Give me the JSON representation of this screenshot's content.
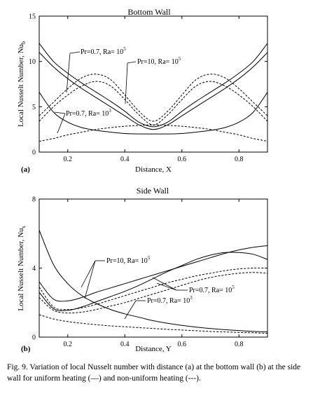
{
  "chart_data": [
    {
      "type": "line",
      "panel_label": "(a)",
      "title": "Bottom Wall",
      "xlabel": "Distance, X",
      "ylabel": "Local Nusselt Number, Nu",
      "ylabel_sub": "b",
      "xlim": [
        0.1,
        0.9
      ],
      "ylim": [
        0,
        15
      ],
      "xticks": [
        0.2,
        0.4,
        0.6,
        0.8
      ],
      "xtick_labels": [
        "0.2",
        "0.4",
        "0.6",
        "0.8"
      ],
      "yticks": [
        0,
        5,
        10,
        15
      ],
      "ytick_labels": [
        "0",
        "5",
        "10",
        "15"
      ],
      "grid": false,
      "annotations": [
        {
          "text": "Pr=0.7, Ra= 10",
          "sup": "5"
        },
        {
          "text": "Pr=10, Ra= 10",
          "sup": "5"
        },
        {
          "text": "Pr=0.7, Ra= 10",
          "sup": "3"
        }
      ],
      "series": [
        {
          "style": "solid",
          "x": [
            0.1,
            0.15,
            0.2,
            0.25,
            0.3,
            0.35,
            0.4,
            0.45,
            0.5,
            0.55,
            0.6,
            0.65,
            0.7,
            0.75,
            0.8,
            0.85,
            0.9
          ],
          "values": [
            12.0,
            10.0,
            8.7,
            7.6,
            6.6,
            5.6,
            4.5,
            3.3,
            2.8,
            3.3,
            4.5,
            5.6,
            6.6,
            7.6,
            8.7,
            10.0,
            12.0
          ]
        },
        {
          "style": "solid",
          "x": [
            0.1,
            0.15,
            0.2,
            0.25,
            0.3,
            0.35,
            0.4,
            0.45,
            0.5,
            0.55,
            0.6,
            0.65,
            0.7,
            0.75,
            0.8,
            0.85,
            0.9
          ],
          "values": [
            11.0,
            9.4,
            8.1,
            7.0,
            6.0,
            5.0,
            4.0,
            3.0,
            2.5,
            3.0,
            4.0,
            5.0,
            6.0,
            7.0,
            8.1,
            9.4,
            11.0
          ]
        },
        {
          "style": "solid",
          "x": [
            0.1,
            0.15,
            0.2,
            0.25,
            0.3,
            0.35,
            0.4,
            0.45,
            0.5,
            0.55,
            0.6,
            0.65,
            0.7,
            0.75,
            0.8,
            0.85,
            0.9
          ],
          "values": [
            6.6,
            4.4,
            3.3,
            2.7,
            2.4,
            2.2,
            2.05,
            2.0,
            2.0,
            2.0,
            2.05,
            2.2,
            2.4,
            2.7,
            3.3,
            4.4,
            6.6
          ]
        },
        {
          "style": "dashed",
          "x": [
            0.1,
            0.15,
            0.2,
            0.25,
            0.3,
            0.35,
            0.4,
            0.45,
            0.5,
            0.55,
            0.6,
            0.65,
            0.7,
            0.75,
            0.8,
            0.85,
            0.9
          ],
          "values": [
            4.0,
            5.5,
            7.0,
            8.2,
            8.6,
            8.0,
            6.3,
            4.5,
            3.4,
            4.5,
            6.3,
            8.0,
            8.6,
            8.2,
            7.0,
            5.5,
            4.0
          ]
        },
        {
          "style": "dashed",
          "x": [
            0.1,
            0.15,
            0.2,
            0.25,
            0.3,
            0.35,
            0.4,
            0.45,
            0.5,
            0.55,
            0.6,
            0.65,
            0.7,
            0.75,
            0.8,
            0.85,
            0.9
          ],
          "values": [
            3.4,
            5.0,
            6.3,
            7.3,
            7.8,
            7.3,
            5.8,
            4.1,
            3.0,
            4.1,
            5.8,
            7.3,
            7.8,
            7.3,
            6.3,
            5.0,
            3.4
          ]
        },
        {
          "style": "dashed",
          "x": [
            0.1,
            0.15,
            0.2,
            0.25,
            0.3,
            0.35,
            0.4,
            0.45,
            0.5,
            0.55,
            0.6,
            0.65,
            0.7,
            0.75,
            0.8,
            0.85,
            0.9
          ],
          "values": [
            1.2,
            1.5,
            1.9,
            2.2,
            2.5,
            2.7,
            2.85,
            2.95,
            3.0,
            2.95,
            2.85,
            2.7,
            2.5,
            2.2,
            1.9,
            1.5,
            1.2
          ]
        }
      ]
    },
    {
      "type": "line",
      "panel_label": "(b)",
      "title": "Side Wall",
      "xlabel": "Distance, Y",
      "ylabel": "Local Nusselt Number, Nu",
      "ylabel_sub": "s",
      "xlim": [
        0.1,
        0.9
      ],
      "ylim": [
        0,
        8
      ],
      "xticks": [
        0.2,
        0.4,
        0.6,
        0.8
      ],
      "xtick_labels": [
        "0.2",
        "0.4",
        "0.6",
        "0.8"
      ],
      "yticks": [
        0,
        4,
        8
      ],
      "ytick_labels": [
        "0",
        "4",
        "8"
      ],
      "grid": false,
      "annotations": [
        {
          "text": "Pr=10, Ra= 10",
          "sup": "5"
        },
        {
          "text": "Pr=0.7, Ra= 10",
          "sup": "5"
        },
        {
          "text": "Pr=0.7, Ra= 10",
          "sup": "3"
        }
      ],
      "series": [
        {
          "style": "solid",
          "x": [
            0.1,
            0.15,
            0.2,
            0.25,
            0.3,
            0.35,
            0.4,
            0.45,
            0.5,
            0.55,
            0.6,
            0.65,
            0.7,
            0.75,
            0.8,
            0.85,
            0.9
          ],
          "values": [
            3.2,
            2.2,
            2.1,
            2.3,
            2.6,
            2.85,
            3.1,
            3.35,
            3.6,
            3.85,
            4.1,
            4.35,
            4.6,
            4.85,
            5.05,
            5.2,
            5.3
          ]
        },
        {
          "style": "solid",
          "x": [
            0.1,
            0.15,
            0.2,
            0.25,
            0.3,
            0.35,
            0.4,
            0.45,
            0.5,
            0.55,
            0.6,
            0.65,
            0.7,
            0.75,
            0.8,
            0.85,
            0.9
          ],
          "values": [
            2.6,
            1.65,
            1.55,
            1.75,
            2.05,
            2.35,
            2.65,
            3.0,
            3.4,
            3.8,
            4.15,
            4.5,
            4.75,
            4.9,
            4.9,
            4.8,
            4.5
          ]
        },
        {
          "style": "solid",
          "x": [
            0.1,
            0.15,
            0.2,
            0.25,
            0.3,
            0.35,
            0.4,
            0.45,
            0.5,
            0.55,
            0.6,
            0.65,
            0.7,
            0.75,
            0.8,
            0.85,
            0.9
          ],
          "values": [
            6.2,
            4.2,
            3.1,
            2.4,
            1.95,
            1.6,
            1.35,
            1.15,
            0.95,
            0.8,
            0.68,
            0.58,
            0.5,
            0.43,
            0.38,
            0.33,
            0.3
          ]
        },
        {
          "style": "dashed",
          "x": [
            0.1,
            0.15,
            0.2,
            0.25,
            0.3,
            0.35,
            0.4,
            0.45,
            0.5,
            0.55,
            0.6,
            0.65,
            0.7,
            0.75,
            0.8,
            0.85,
            0.9
          ],
          "values": [
            2.9,
            1.75,
            1.6,
            1.7,
            1.9,
            2.15,
            2.4,
            2.65,
            2.9,
            3.15,
            3.35,
            3.55,
            3.7,
            3.85,
            3.95,
            4.0,
            4.0
          ]
        },
        {
          "style": "dashed",
          "x": [
            0.1,
            0.15,
            0.2,
            0.25,
            0.3,
            0.35,
            0.4,
            0.45,
            0.5,
            0.55,
            0.6,
            0.65,
            0.7,
            0.75,
            0.8,
            0.85,
            0.9
          ],
          "values": [
            2.3,
            1.55,
            1.4,
            1.45,
            1.6,
            1.8,
            2.0,
            2.25,
            2.5,
            2.75,
            3.0,
            3.25,
            3.45,
            3.6,
            3.7,
            3.75,
            3.7
          ]
        },
        {
          "style": "dashed",
          "x": [
            0.1,
            0.15,
            0.2,
            0.25,
            0.3,
            0.35,
            0.4,
            0.45,
            0.5,
            0.55,
            0.6,
            0.65,
            0.7,
            0.75,
            0.8,
            0.85,
            0.9
          ],
          "values": [
            1.3,
            1.05,
            0.9,
            0.8,
            0.72,
            0.65,
            0.6,
            0.55,
            0.5,
            0.45,
            0.41,
            0.37,
            0.33,
            0.3,
            0.27,
            0.25,
            0.22
          ]
        }
      ]
    }
  ],
  "caption": "Fig. 9.  Variation of local Nusselt number with distance (a) at the bottom wall (b) at the side wall for uniform heating (—) and non-uniform heating (---)."
}
